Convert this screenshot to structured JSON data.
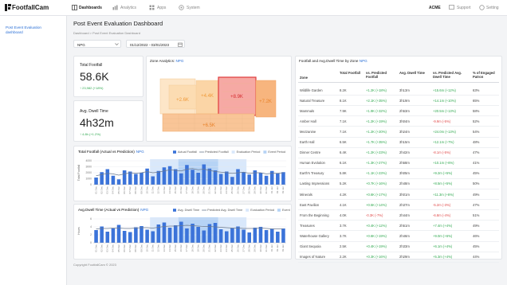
{
  "nav": {
    "logo": "FootfallCam",
    "items": [
      "Dashboards",
      "Analytics",
      "Apps",
      "System"
    ],
    "account": "ACME",
    "support": "Support",
    "setting": "Setting"
  },
  "sidebar": {
    "link": "Post Event Evaluation dashboard"
  },
  "header": {
    "title": "Post Event Evaluation Dashboard",
    "breadcrumb": "Dashboard > Post Event Evaluation Dashboard"
  },
  "filters": {
    "site": "NPG",
    "date_range": "01/12/2022 - 03/01/2023"
  },
  "kpis": [
    {
      "label": "Total Footfall",
      "value": "58.6K",
      "change": "↑ 23,982 (+18%)"
    },
    {
      "label": "Avg. Dwell Time",
      "value": "4h32m",
      "change": "↑ 4.8h (+1.2%)"
    }
  ],
  "zone_analytics": {
    "title": "Zone Analytics:",
    "site": "NPG",
    "zones": [
      "+2.6K",
      "+4.4K",
      "+8.9K",
      "+7.2K",
      "+6.5K"
    ]
  },
  "chart_data": [
    {
      "type": "bar",
      "title": "Total Footfall (Actual vs Prediction)",
      "site": "NPG",
      "y_label": "Total Footfall",
      "categories": [
        "01 Dec",
        "02 Dec",
        "03 Dec",
        "04 Dec",
        "05 Dec",
        "06 Dec",
        "07 Dec",
        "08 Dec",
        "09 Dec",
        "10 Dec",
        "11 Dec",
        "12 Dec",
        "13 Dec",
        "14 Dec",
        "15 Dec",
        "16 Dec",
        "17 Dec",
        "18 Dec",
        "19 Dec",
        "20 Dec",
        "21 Dec",
        "22 Dec",
        "23 Dec",
        "24 Dec",
        "25 Dec",
        "26 Dec",
        "27 Dec",
        "28 Dec",
        "29 Dec",
        "30 Dec",
        "31 Dec",
        "01 Jan",
        "02 Jan",
        "03 Jan"
      ],
      "series": [
        {
          "name": "Actual Footfall",
          "color": "#3b73d9",
          "values": [
            1200,
            2100,
            2600,
            1500,
            900,
            2400,
            2200,
            1800,
            2000,
            2700,
            1400,
            2300,
            2900,
            3100,
            2600,
            1900,
            3300,
            2500,
            2000,
            3400,
            2700,
            2400,
            1800,
            2200,
            1300,
            2600,
            2100,
            1700,
            2400,
            2000,
            1500,
            2300,
            1900,
            2100
          ]
        },
        {
          "name": "Predicted Footfall",
          "color": "#6b7a90",
          "values": [
            1500,
            1700,
            1900,
            1800,
            1600,
            1800,
            2000,
            1900,
            2000,
            2200,
            2000,
            2100,
            2300,
            2500,
            2400,
            2300,
            2600,
            2700,
            2500,
            2600,
            2400,
            2200,
            2100,
            2000,
            1900,
            2000,
            2100,
            1900,
            2000,
            2000,
            1800,
            1900,
            1900,
            2000
          ]
        }
      ],
      "evaluation_period": {
        "label": "Evaluation Period",
        "color": "#d9e8fb",
        "start": "11 Dec",
        "end": "27 Dec"
      },
      "event_period": {
        "label": "Event Period",
        "color": "#b6d3f5",
        "start": "16 Dec",
        "end": "22 Dec"
      },
      "ylim": [
        0,
        4000
      ],
      "yticks": [
        0,
        1000,
        2000,
        3000,
        4000
      ]
    },
    {
      "type": "bar",
      "title": "Avg.Dwell Time (Actual vs Prediction)",
      "site": "NPG",
      "y_label": "Hours",
      "categories": [
        "01 Dec",
        "02 Dec",
        "03 Dec",
        "04 Dec",
        "05 Dec",
        "06 Dec",
        "07 Dec",
        "08 Dec",
        "09 Dec",
        "10 Dec",
        "11 Dec",
        "12 Dec",
        "13 Dec",
        "14 Dec",
        "15 Dec",
        "16 Dec",
        "17 Dec",
        "18 Dec",
        "19 Dec",
        "20 Dec",
        "21 Dec",
        "22 Dec",
        "23 Dec",
        "24 Dec",
        "25 Dec",
        "26 Dec",
        "27 Dec",
        "28 Dec",
        "29 Dec",
        "30 Dec",
        "31 Dec",
        "01 Jan",
        "02 Jan",
        "03 Jan"
      ],
      "series": [
        {
          "name": "Avg. Dwell Time",
          "color": "#3b73d9",
          "values": [
            3.2,
            4.1,
            2.8,
            3.6,
            4.5,
            3.0,
            2.7,
            3.9,
            4.2,
            3.3,
            2.9,
            4.6,
            5.1,
            3.8,
            4.4,
            5.3,
            3.6,
            4.8,
            4.0,
            3.1,
            4.7,
            5.0,
            3.4,
            2.9,
            3.7,
            4.1,
            3.3,
            2.6,
            3.8,
            4.0,
            3.2,
            3.5,
            2.8,
            3.6
          ]
        },
        {
          "name": "Predicted Avg. Dwell Time",
          "color": "#6b7a90",
          "values": [
            3.5,
            3.6,
            3.6,
            3.7,
            3.7,
            3.6,
            3.6,
            3.7,
            3.8,
            3.8,
            3.7,
            3.9,
            4.1,
            4.2,
            4.2,
            4.3,
            4.4,
            4.3,
            4.2,
            4.1,
            4.1,
            4.0,
            3.9,
            3.8,
            3.7,
            3.7,
            3.6,
            3.6,
            3.6,
            3.7,
            3.6,
            3.5,
            3.5,
            3.5
          ]
        }
      ],
      "evaluation_period": {
        "label": "Evaluation Period",
        "color": "#d9e8fb",
        "start": "11 Dec",
        "end": "27 Dec"
      },
      "event_period": {
        "label": "Event Period",
        "color": "#b6d3f5",
        "start": "16 Dec",
        "end": "22 Dec"
      },
      "ylim": [
        0,
        6
      ],
      "yticks": [
        0,
        2,
        4,
        6
      ]
    }
  ],
  "table": {
    "title": "Footfall and Avg.Dwell Time by Zone",
    "site": "NPG",
    "columns": [
      "Zone",
      "Total Footfall",
      "vs. Predicted Footfall",
      "Avg. Dwell Time",
      "vs. Predicted Avg. Dwell Time",
      "% of Engaged Patron"
    ],
    "rows": [
      [
        "Wildlife Garden",
        "8.2K",
        "+1.2K (+18%)",
        "3h13m",
        "+15.6m (+12%)",
        "63%"
      ],
      [
        "Natural Treasure",
        "8.1K",
        "+2.1K (+35%)",
        "3h19m",
        "+14.1m (+10%)",
        "65%"
      ],
      [
        "Mammals",
        "7.9K",
        "+1.9K (+32%)",
        "2h53m",
        "+20.5m (+13%)",
        "58%"
      ],
      [
        "Amber Hall",
        "7.1K",
        "+1.2K (+19%)",
        "3h04m",
        "-9.9m (-5%)",
        "52%"
      ],
      [
        "Mezzanine",
        "7.1K",
        "+1.2K (+20%)",
        "3h24m",
        "+24.0m (+13%)",
        "54%"
      ],
      [
        "Earth Hall",
        "6.5K",
        "+1.7K (+35%)",
        "3h15m",
        "+12.1m (+7%)",
        "48%"
      ],
      [
        "Dinner Centre",
        "6.4K",
        "+1.2K (+23%)",
        "2h42m",
        "-8.1m (-5%)",
        "47%"
      ],
      [
        "Human Evolution",
        "6.1K",
        "+1.3K (+27%)",
        "2h58m",
        "+10.1m (+6%)",
        "41%"
      ],
      [
        "Earth's Treasury",
        "5.8K",
        "+1.1K (+23%)",
        "3h05m",
        "+9.2m (+5%)",
        "45%"
      ],
      [
        "Lasting Impressions",
        "5.2K",
        "+0.7K (+16%)",
        "2h48m",
        "+8.5m (+5%)",
        "50%"
      ],
      [
        "Minerals",
        "4.2K",
        "+0.6K (+17%)",
        "3h01m",
        "+11.3m (+6%)",
        "49%"
      ],
      [
        "East Pavilion",
        "4.1K",
        "+0.5K (+14%)",
        "2h37m",
        "-5.2m (-3%)",
        "47%"
      ],
      [
        "From the Beginning",
        "4.0K",
        "-0.3K (-7%)",
        "2h44m",
        "-6.8m (-4%)",
        "51%"
      ],
      [
        "Treasures",
        "3.7K",
        "+0.4K (+12%)",
        "2h51m",
        "+7.4m (+4%)",
        "49%"
      ],
      [
        "Waterhouse Gallery",
        "3.7K",
        "+0.6K (+19%)",
        "2h46m",
        "+9.0m (+6%)",
        "46%"
      ],
      [
        "Giant Sequoia",
        "2.5K",
        "+0.4K (+19%)",
        "2h33m",
        "+6.1m (+4%)",
        "45%"
      ],
      [
        "Images of Nature",
        "2.2K",
        "+0.3K (+16%)",
        "2h29m",
        "+5.3m (+4%)",
        "44%"
      ]
    ]
  },
  "footer": {
    "copyright": "Copyright FootfallCam © 2023"
  }
}
